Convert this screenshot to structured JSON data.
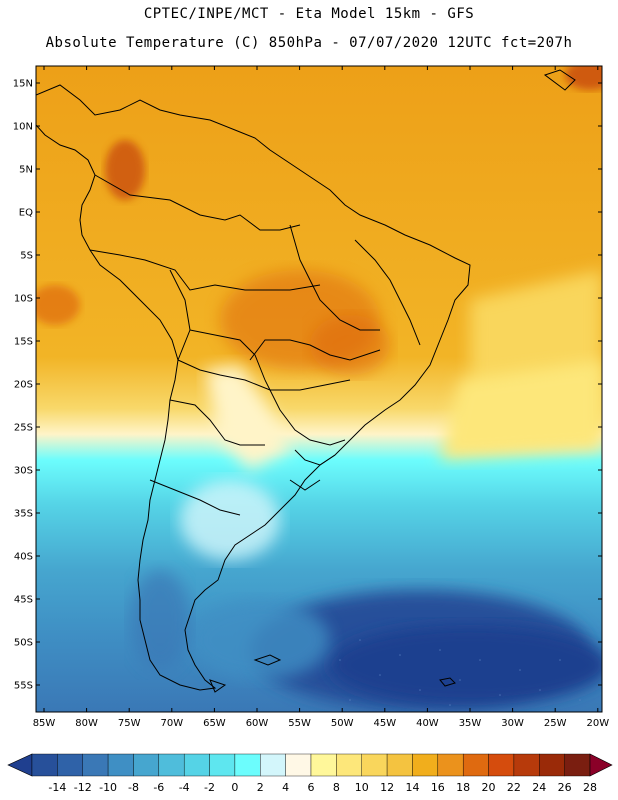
{
  "header": {
    "line1": "CPTEC/INPE/MCT -  Eta Model 15km - GFS",
    "line2": "Absolute Temperature (C) 850hPa - 07/07/2020 12UTC fct=207h"
  },
  "axes": {
    "lat_labels": [
      "15N",
      "10N",
      "5N",
      "EQ",
      "5S",
      "10S",
      "15S",
      "20S",
      "25S",
      "30S",
      "35S",
      "40S",
      "45S",
      "50S",
      "55S"
    ],
    "lon_labels": [
      "85W",
      "80W",
      "75W",
      "70W",
      "65W",
      "60W",
      "55W",
      "50W",
      "45W",
      "40W",
      "35W",
      "30W",
      "25W",
      "20W"
    ]
  },
  "colorbar": {
    "labels": [
      "-14",
      "-12",
      "-10",
      "-8",
      "-6",
      "-4",
      "-2",
      "0",
      "2",
      "4",
      "6",
      "8",
      "10",
      "12",
      "14",
      "16",
      "18",
      "20",
      "22",
      "24",
      "26",
      "28"
    ],
    "colors": [
      "#1f3f8f",
      "#27509a",
      "#2f62a8",
      "#3a78b6",
      "#3f8fc4",
      "#46a6cf",
      "#4fbddb",
      "#55d3e6",
      "#5ee6ef",
      "#6cfdfd",
      "#d3f6fb",
      "#fff8e6",
      "#fff79a",
      "#fde77a",
      "#f9d65c",
      "#f4c340",
      "#f1ae1c",
      "#eb921c",
      "#df6a10",
      "#d54c0d",
      "#b73a0b",
      "#9a2a08",
      "#7a1e10",
      "#8a0028"
    ]
  },
  "map": {
    "region": "South America",
    "field": "Absolute Temperature 850hPa"
  }
}
